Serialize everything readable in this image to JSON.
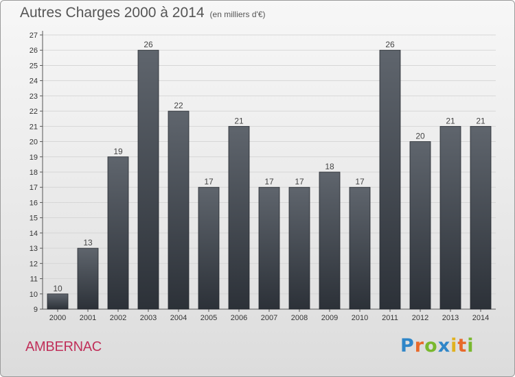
{
  "header": {
    "title": "Autres Charges 2000 à 2014",
    "unit": "(en milliers d'€)"
  },
  "footer": {
    "city": "AMBERNAC",
    "logo": [
      "P",
      "r",
      "o",
      "x",
      "i",
      "t",
      "i"
    ]
  },
  "colors": {
    "bar_top": "#5f656d",
    "bar_bottom": "#2c3138",
    "city": "#c0305a",
    "grid": "#d6d6d6"
  },
  "chart_data": {
    "type": "bar",
    "title": "Autres Charges 2000 à 2014",
    "subtitle": "(en milliers d'€)",
    "xlabel": "",
    "ylabel": "",
    "categories": [
      "2000",
      "2001",
      "2002",
      "2003",
      "2004",
      "2005",
      "2006",
      "2007",
      "2008",
      "2009",
      "2010",
      "2011",
      "2012",
      "2013",
      "2014"
    ],
    "values": [
      10,
      13,
      19,
      26,
      22,
      17,
      21,
      17,
      17,
      18,
      17,
      26,
      20,
      21,
      21
    ],
    "ylim": [
      9,
      27
    ],
    "yticks": [
      9,
      10,
      11,
      12,
      13,
      14,
      15,
      16,
      17,
      18,
      19,
      20,
      21,
      22,
      23,
      24,
      25,
      26,
      27
    ],
    "grid": true,
    "legend": "none"
  }
}
